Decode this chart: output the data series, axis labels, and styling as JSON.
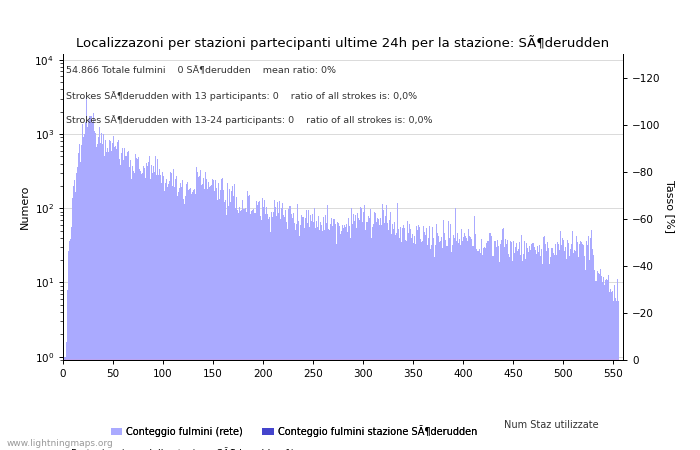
{
  "title": "Localizzazoni per stazioni partecipanti ultime 24h per la stazione: SÃ¶derudden",
  "subtitle_lines": [
    "54.866 Totale fulmini    0 SÃ¶derudden    mean ratio: 0%",
    "Strokes SÃ¶derudden with 13 participants: 0    ratio of all strokes is: 0,0%",
    "Strokes SÃ¶derudden with 13-24 participants: 0    ratio of all strokes is: 0,0%"
  ],
  "ylabel_left": "Numero",
  "ylabel_right": "Tasso [%]",
  "xlim": [
    0,
    560
  ],
  "ylim_right": [
    0,
    130
  ],
  "bar_color_light": "#aaaaff",
  "bar_color_dark": "#4444cc",
  "line_color": "#ff88aa",
  "watermark": "www.lightningmaps.org",
  "legend_labels": [
    "Conteggio fulmini (rete)",
    "Conteggio fulmini stazione SÃ¶derudden",
    "Partecipazione della stazione SÃ¶derudden %"
  ],
  "legend2_label": "Num Staz utilizzate",
  "xticks": [
    0,
    50,
    100,
    150,
    200,
    250,
    300,
    350,
    400,
    450,
    500,
    550
  ],
  "yticks_right": [
    0,
    20,
    40,
    60,
    80,
    100,
    120
  ],
  "background_color": "#ffffff",
  "grid_color": "#cccccc"
}
